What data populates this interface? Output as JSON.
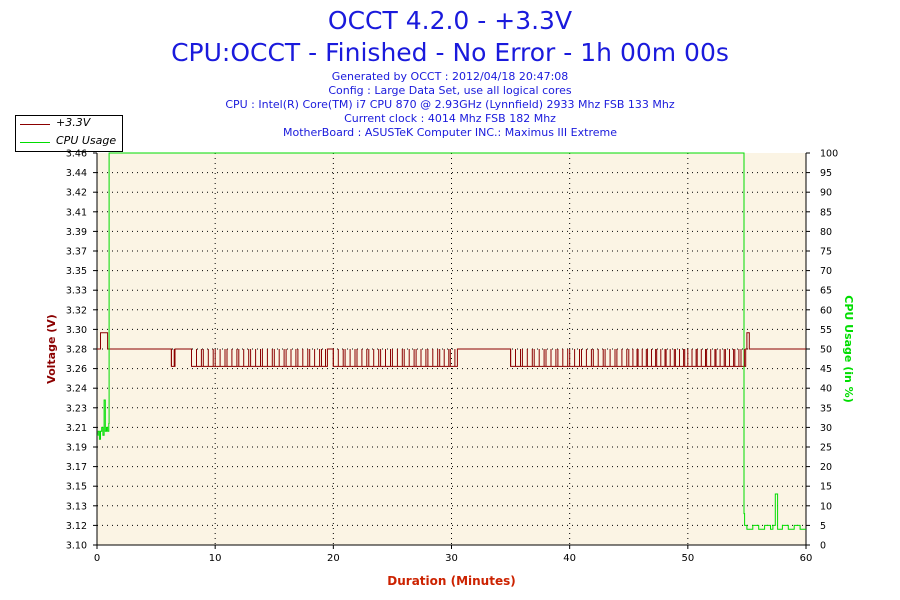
{
  "header": {
    "title_line1": "OCCT 4.2.0 - +3.3V",
    "title_line2": "CPU:OCCT - Finished - No Error - 1h 00m 00s",
    "info_lines": [
      "Generated by OCCT : 2012/04/18 20:47:08",
      "Config : Large Data Set, use all logical cores",
      "CPU : Intel(R) Core(TM) i7 CPU 870 @ 2.93GHz (Lynnfield) 2933 Mhz FSB 133 Mhz",
      "Current clock : 4014 Mhz FSB 182 Mhz",
      "MotherBoard : ASUSTeK Computer INC.: Maximus III Extreme"
    ]
  },
  "legend": {
    "placement": "top-left",
    "items": [
      {
        "label": "+3.3V",
        "color": "#8b0000"
      },
      {
        "label": "CPU Usage",
        "color": "#00dd00"
      }
    ]
  },
  "colors": {
    "title": "#1a1adc",
    "voltage": "#8b0000",
    "cpu": "#00dd00",
    "plot_bg": "#fbf4e4",
    "grid": "#000000",
    "xlabel": "#cc2200"
  },
  "chart_data": {
    "type": "line",
    "xlabel": "Duration (Minutes)",
    "ylabel_left": "Voltage (V)",
    "ylabel_right": "CPU Usage (in %)",
    "xlim": [
      0,
      60
    ],
    "ylim_left": [
      3.1,
      3.46
    ],
    "ylim_right": [
      0,
      100
    ],
    "grid": true,
    "x_ticks": [
      "0",
      "10",
      "20",
      "30",
      "40",
      "50",
      "60"
    ],
    "y_left_ticks": [
      "3.10",
      "3.12",
      "3.13",
      "3.15",
      "3.17",
      "3.19",
      "3.21",
      "3.23",
      "3.24",
      "3.26",
      "3.28",
      "3.30",
      "3.32",
      "3.33",
      "3.35",
      "3.37",
      "3.39",
      "3.41",
      "3.42",
      "3.44",
      "3.46"
    ],
    "y_right_ticks": [
      "0",
      "5",
      "10",
      "15",
      "20",
      "25",
      "30",
      "35",
      "40",
      "45",
      "50",
      "55",
      "60",
      "65",
      "70",
      "75",
      "80",
      "85",
      "90",
      "95",
      "100"
    ],
    "series": [
      {
        "name": "+3.3V",
        "axis": "left",
        "x": [
          0,
          0.3,
          0.6,
          0.9,
          1.0,
          6.0,
          6.3,
          6.6,
          8.0,
          9.0,
          10.0,
          11.0,
          12.0,
          13.0,
          14.0,
          15.0,
          16.0,
          17.0,
          18.0,
          19.0,
          19.5,
          20.0,
          21.0,
          22.0,
          23.0,
          24.0,
          25.0,
          26.0,
          27.0,
          28.0,
          29.0,
          30.5,
          31.0,
          34.0,
          35.0,
          36.0,
          37.0,
          38.0,
          39.0,
          40.0,
          41.0,
          42.0,
          43.0,
          44.0,
          45.0,
          50.0,
          54.5,
          54.9,
          55.0,
          55.2,
          60.0
        ],
        "values": [
          3.28,
          3.295,
          3.295,
          3.28,
          3.28,
          3.28,
          3.264,
          3.28,
          3.264,
          3.264,
          3.264,
          3.264,
          3.264,
          3.264,
          3.264,
          3.264,
          3.264,
          3.264,
          3.264,
          3.264,
          3.28,
          3.264,
          3.264,
          3.264,
          3.264,
          3.264,
          3.264,
          3.264,
          3.264,
          3.264,
          3.264,
          3.28,
          3.28,
          3.28,
          3.264,
          3.264,
          3.264,
          3.264,
          3.264,
          3.264,
          3.264,
          3.264,
          3.264,
          3.264,
          3.264,
          3.264,
          3.264,
          3.28,
          3.295,
          3.28,
          3.28
        ]
      },
      {
        "name": "CPU Usage",
        "axis": "right",
        "x": [
          0,
          0.1,
          0.2,
          0.3,
          0.4,
          0.5,
          0.6,
          0.7,
          0.8,
          0.9,
          1.0,
          1.02,
          54.7,
          54.75,
          54.8,
          55.0,
          55.5,
          56.0,
          56.5,
          57.0,
          57.2,
          57.4,
          57.6,
          58.0,
          58.5,
          59.0,
          59.5,
          60.0
        ],
        "values": [
          28,
          29,
          27,
          29,
          30,
          28,
          37,
          29,
          30,
          29,
          31,
          100,
          100,
          8,
          5,
          4,
          5,
          4,
          5,
          4,
          5,
          13,
          4,
          5,
          4,
          5,
          4,
          4
        ]
      }
    ]
  }
}
